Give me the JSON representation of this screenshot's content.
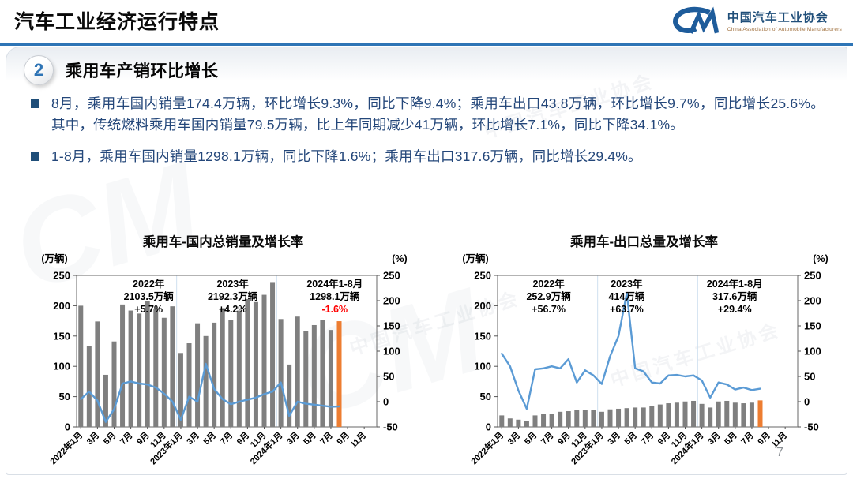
{
  "header": {
    "title": "汽车工业经济运行特点",
    "logo": {
      "mark": "CM",
      "name_cn": "中国汽车工业协会",
      "name_en": "China Association of Automobile Manufacturers"
    }
  },
  "section": {
    "number": "2",
    "title": "乘用车产销环比增长"
  },
  "bullets": [
    "8月，乘用车国内销量174.4万辆，环比增长9.3%，同比下降9.4%；乘用车出口43.8万辆，环比增长9.7%，同比增长25.6%。其中，传统燃料乘用车国内销量79.5万辆，比上年同期减少41万辆，环比增长7.1%，同比下降34.1%。",
    "1-8月，乘用车国内销量1298.1万辆，同比下降1.6%；乘用车出口317.6万辆，同比增长29.4%。"
  ],
  "watermark": {
    "text": "中国汽车工业协会",
    "mark": "CM"
  },
  "footer": {
    "page_number": "7"
  },
  "colors": {
    "accent_blue": "#2e75b6",
    "bar_gray": "#7f7f7f",
    "bar_highlight_orange": "#ed7d31",
    "line_blue": "#5b9bd5",
    "negative_red": "#ff0000",
    "body_text_navy": "#24477a"
  },
  "chart_data": [
    {
      "type": "bar",
      "subtype": "bar-with-growth-line",
      "title": "乘用车-国内总销量及增长率",
      "left_axis": {
        "label": "(万辆)",
        "min": 0,
        "max": 250,
        "ticks": [
          0,
          50,
          100,
          150,
          200,
          250
        ]
      },
      "right_axis": {
        "label": "(%)",
        "min": -50,
        "max": 250,
        "ticks": [
          -50,
          0,
          50,
          100,
          150,
          200,
          250
        ]
      },
      "n_slots": 36,
      "year_separator_slots": [
        12,
        24
      ],
      "x_tick_labels": [
        "2022年1月",
        "3月",
        "5月",
        "7月",
        "9月",
        "11月",
        "2023年1月",
        "3月",
        "5月",
        "7月",
        "9月",
        "11月",
        "2024年1月",
        "3月",
        "5月",
        "7月",
        "9月",
        "11月"
      ],
      "categories": [
        "2022年1月",
        "2022年2月",
        "2022年3月",
        "2022年4月",
        "2022年5月",
        "2022年6月",
        "2022年7月",
        "2022年8月",
        "2022年9月",
        "2022年10月",
        "2022年11月",
        "2022年12月",
        "2023年1月",
        "2023年2月",
        "2023年3月",
        "2023年4月",
        "2023年5月",
        "2023年6月",
        "2023年7月",
        "2023年8月",
        "2023年9月",
        "2023年10月",
        "2023年11月",
        "2023年12月",
        "2024年1月",
        "2024年2月",
        "2024年3月",
        "2024年4月",
        "2024年5月",
        "2024年6月",
        "2024年7月",
        "2024年8月"
      ],
      "series": [
        {
          "name": "国内销量(万辆)",
          "axis": "left",
          "kind": "bar",
          "values": [
            200,
            134,
            174,
            86,
            141,
            202,
            192,
            187,
            208,
            194,
            180,
            199,
            122,
            138,
            171,
            150,
            172,
            196,
            177,
            192,
            211,
            206,
            218,
            239,
            178,
            103,
            182,
            158,
            168,
            176,
            160,
            174.4
          ]
        },
        {
          "name": "同比增长率(%)",
          "axis": "right",
          "kind": "line",
          "values": [
            5,
            20,
            2,
            -40,
            -15,
            36,
            40,
            36,
            34,
            28,
            16,
            0,
            -36,
            10,
            0,
            75,
            25,
            5,
            -5,
            0,
            4,
            8,
            15,
            20,
            38,
            -28,
            0,
            -4,
            -6,
            -8,
            -10,
            -9.4
          ]
        }
      ],
      "bar_color": "#7f7f7f",
      "highlight_last_bar_color": "#ed7d31",
      "line_color": "#5b9bd5",
      "annotations": [
        {
          "lines": [
            "2022年",
            "2103.5万辆",
            "+5.7%"
          ],
          "x_frac": 0.24,
          "value_color": "#000000"
        },
        {
          "lines": [
            "2023年",
            "2192.3万辆",
            "+4.2%"
          ],
          "x_frac": 0.52,
          "value_color": "#000000"
        },
        {
          "lines": [
            "2024年1-8月",
            "1298.1万辆",
            "-1.6%"
          ],
          "x_frac": 0.86,
          "value_color": "#ff0000"
        }
      ]
    },
    {
      "type": "bar",
      "subtype": "bar-with-growth-line",
      "title": "乘用车-出口总量及增长率",
      "left_axis": {
        "label": "(万辆)",
        "min": 0,
        "max": 250,
        "ticks": [
          0,
          50,
          100,
          150,
          200,
          250
        ]
      },
      "right_axis": {
        "label": "(%)",
        "min": -50,
        "max": 250,
        "ticks": [
          -50,
          0,
          50,
          100,
          150,
          200,
          250
        ]
      },
      "n_slots": 36,
      "year_separator_slots": [
        12,
        24
      ],
      "x_tick_labels": [
        "2022年1月",
        "3月",
        "5月",
        "7月",
        "9月",
        "11月",
        "2023年1月",
        "3月",
        "5月",
        "7月",
        "9月",
        "11月",
        "2024年1月",
        "3月",
        "5月",
        "7月",
        "9月",
        "11月"
      ],
      "categories": [
        "2022年1月",
        "2022年2月",
        "2022年3月",
        "2022年4月",
        "2022年5月",
        "2022年6月",
        "2022年7月",
        "2022年8月",
        "2022年9月",
        "2022年10月",
        "2022年11月",
        "2022年12月",
        "2023年1月",
        "2023年2月",
        "2023年3月",
        "2023年4月",
        "2023年5月",
        "2023年6月",
        "2023年7月",
        "2023年8月",
        "2023年9月",
        "2023年10月",
        "2023年11月",
        "2023年12月",
        "2024年1月",
        "2024年2月",
        "2024年3月",
        "2024年4月",
        "2024年5月",
        "2024年6月",
        "2024年7月",
        "2024年8月"
      ],
      "series": [
        {
          "name": "出口量(万辆)",
          "axis": "left",
          "kind": "bar",
          "values": [
            19,
            14,
            12,
            10,
            19,
            21,
            22,
            25,
            26,
            28,
            28,
            28,
            25,
            29,
            30,
            31,
            32,
            32,
            34,
            37,
            39,
            40,
            42,
            43,
            38,
            32,
            42,
            43,
            40,
            39,
            40,
            43.8
          ]
        },
        {
          "name": "同比增长率(%)",
          "axis": "right",
          "kind": "line",
          "values": [
            95,
            70,
            22,
            -14,
            64,
            66,
            70,
            66,
            84,
            38,
            62,
            52,
            35,
            90,
            130,
            215,
            66,
            60,
            38,
            36,
            52,
            53,
            50,
            52,
            42,
            8,
            38,
            34,
            24,
            28,
            23,
            25.6
          ]
        }
      ],
      "bar_color": "#7f7f7f",
      "highlight_last_bar_color": "#ed7d31",
      "line_color": "#5b9bd5",
      "annotations": [
        {
          "lines": [
            "2022年",
            "252.9万辆",
            "+56.7%"
          ],
          "x_frac": 0.17,
          "value_color": "#000000"
        },
        {
          "lines": [
            "2023年",
            "414万辆",
            "+63.7%"
          ],
          "x_frac": 0.43,
          "value_color": "#000000"
        },
        {
          "lines": [
            "2024年1-8月",
            "317.6万辆",
            "+29.4%"
          ],
          "x_frac": 0.79,
          "value_color": "#000000"
        }
      ]
    }
  ]
}
